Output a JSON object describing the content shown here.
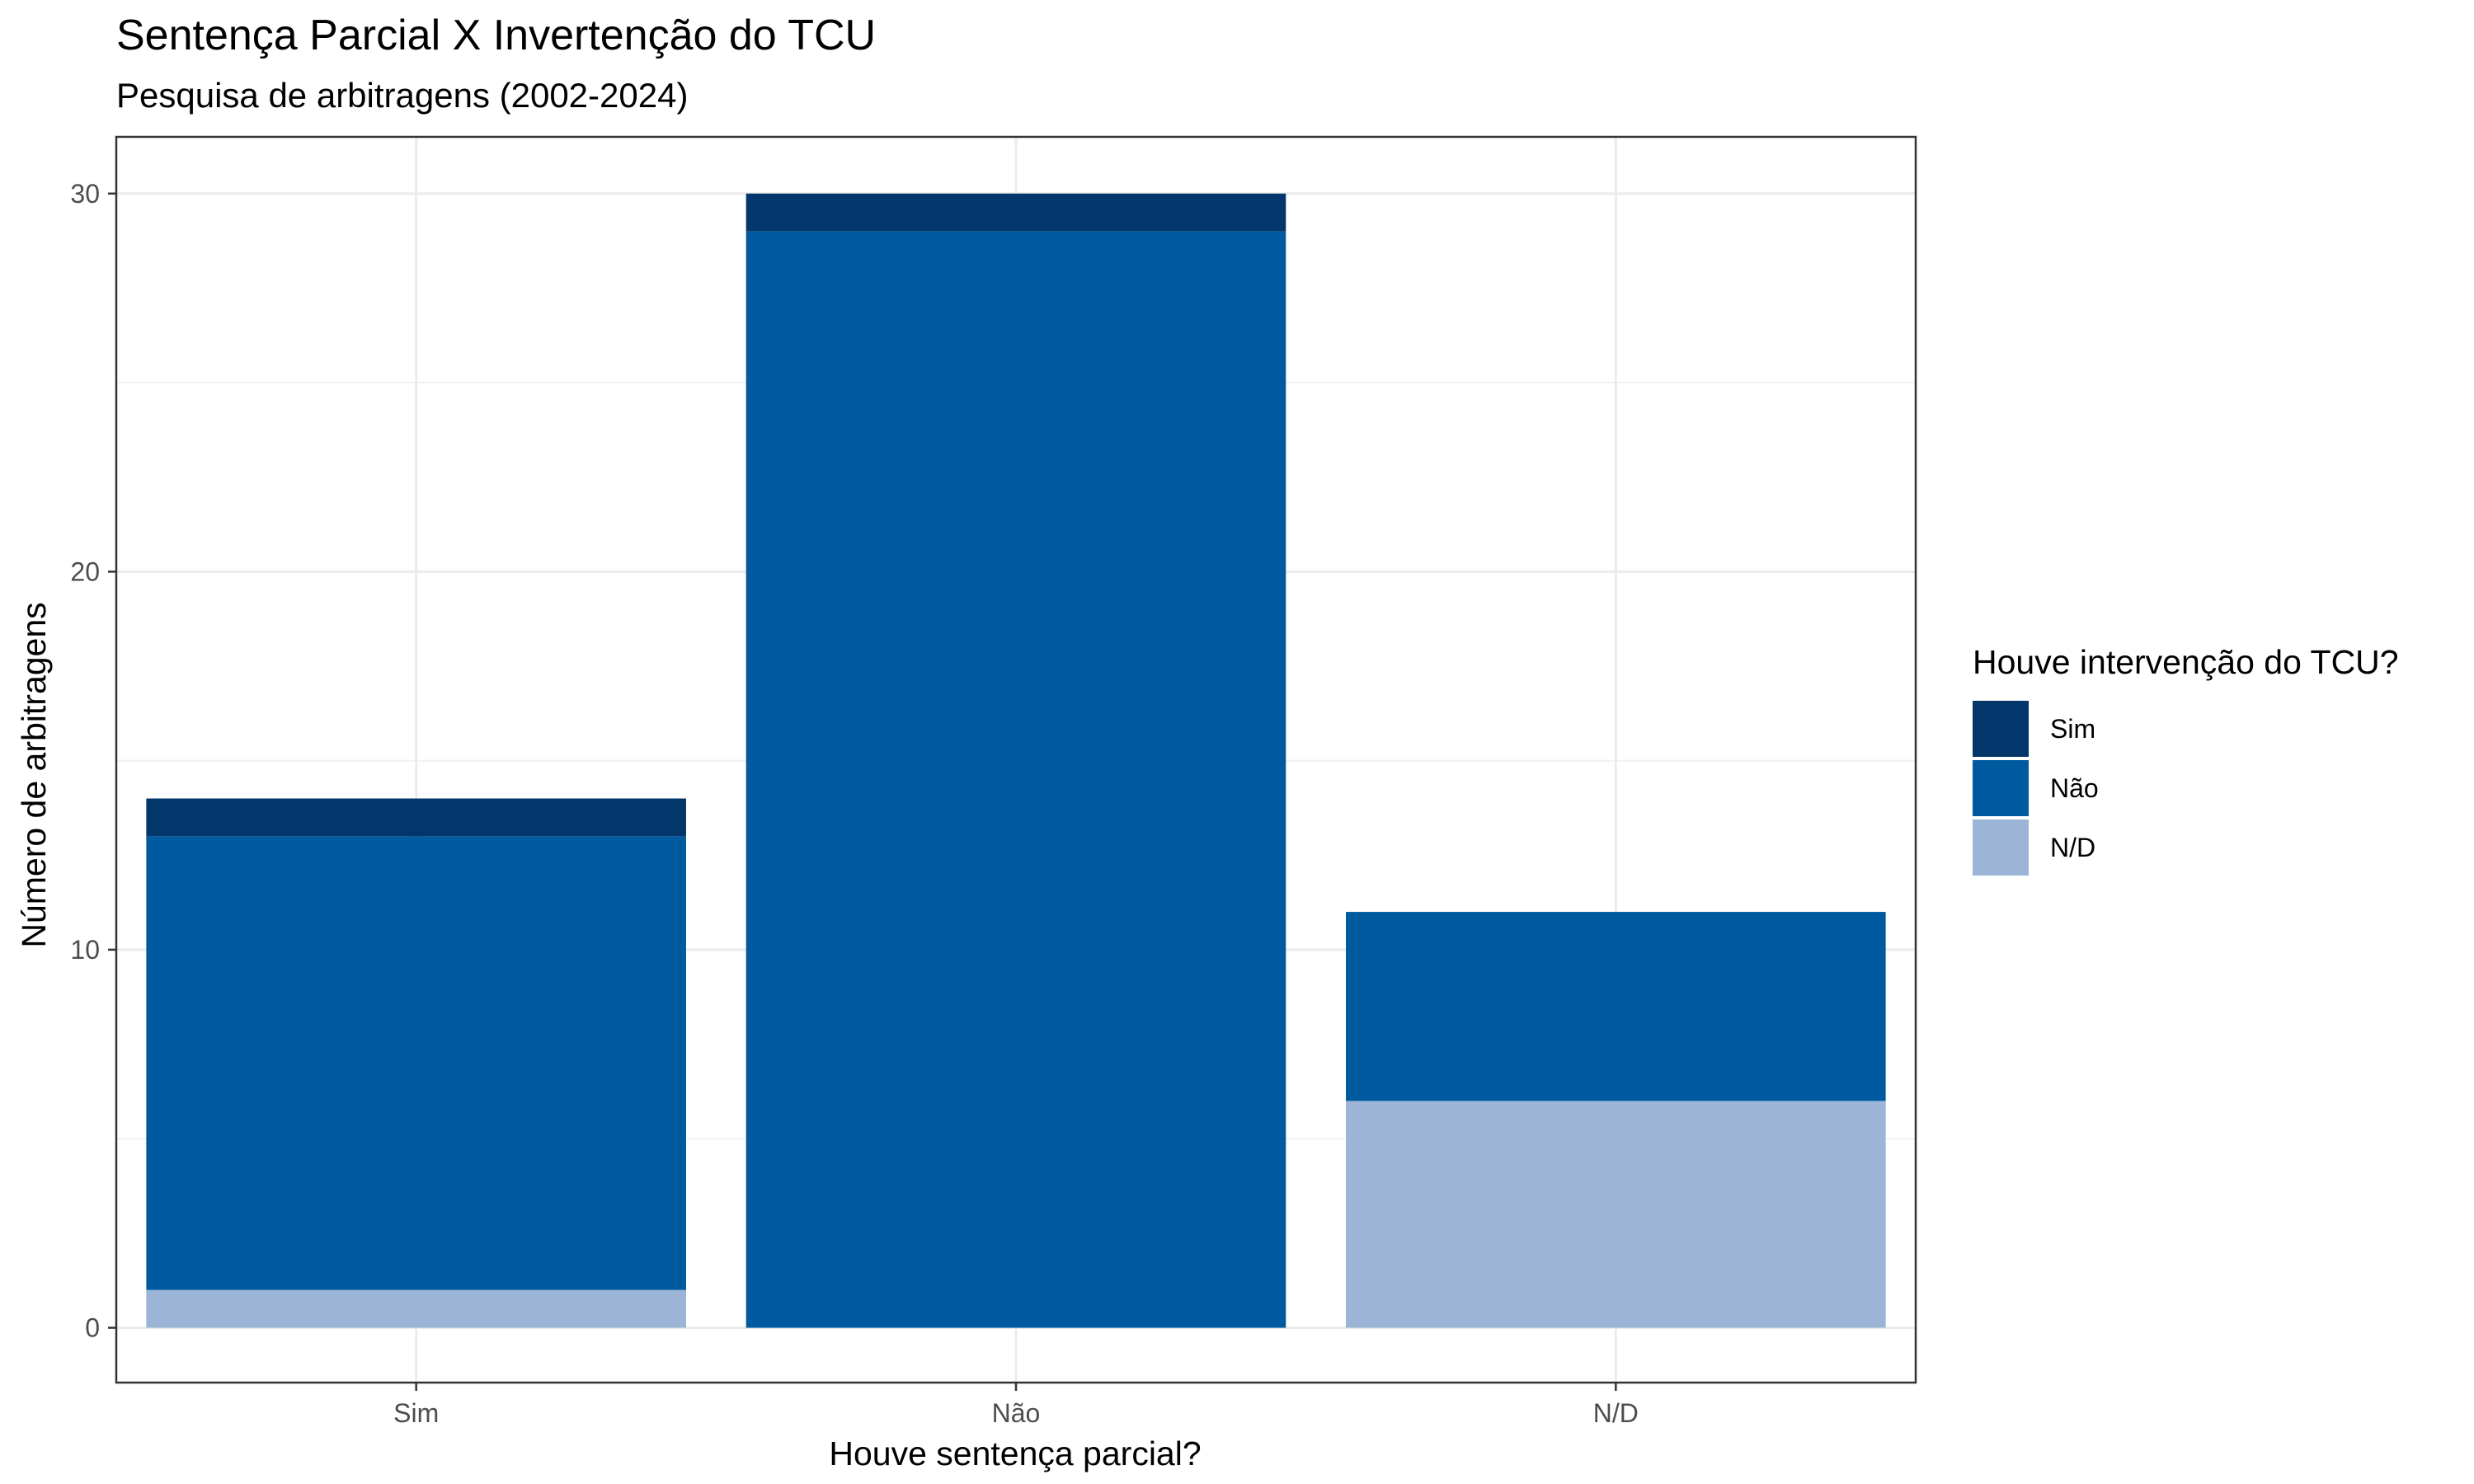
{
  "chart_data": {
    "type": "bar",
    "stacked": true,
    "title": "Sentença Parcial X Invertenção do TCU",
    "subtitle": "Pesquisa de arbitragens (2002-2024)",
    "xlabel": "Houve sentença parcial?",
    "ylabel": "Número de arbitragens",
    "categories": [
      "Sim",
      "Não",
      "N/D"
    ],
    "series": [
      {
        "name": "Sim",
        "values": [
          1,
          1,
          0
        ],
        "color": "#03376B"
      },
      {
        "name": "Não",
        "values": [
          12,
          29,
          5
        ],
        "color": "#005A9F"
      },
      {
        "name": "N/D",
        "values": [
          1,
          0,
          6
        ],
        "color": "#9CB4D5"
      }
    ],
    "stack_order_bottom_to_top": [
      "N/D",
      "Não",
      "Sim"
    ],
    "ylim": [
      -1.45,
      31.5
    ],
    "y_ticks": [
      0,
      10,
      20,
      30
    ],
    "grid": true,
    "legend": {
      "title": "Houve intervenção do TCU?",
      "position": "right"
    }
  }
}
